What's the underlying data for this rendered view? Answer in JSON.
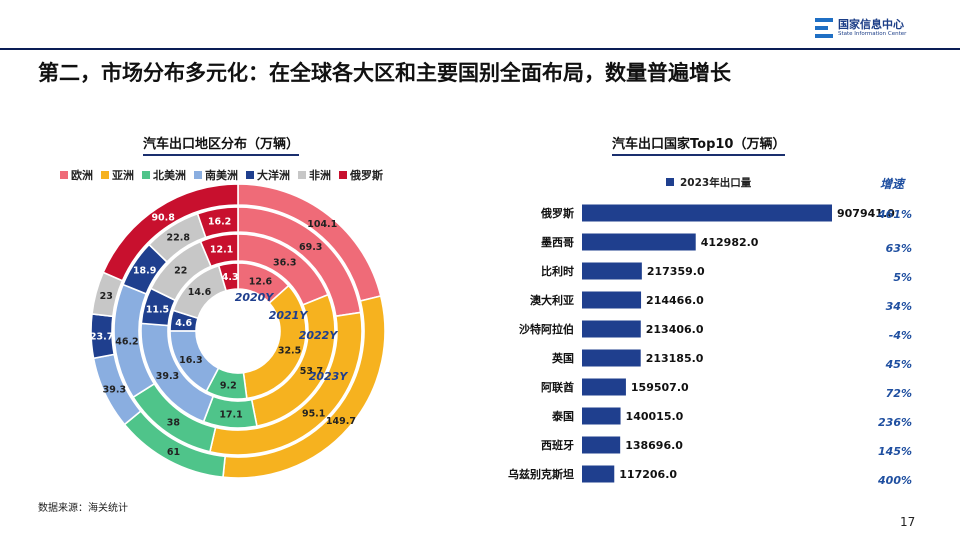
{
  "header": {
    "logo_cn": "国家信息中心",
    "logo_en": "State Information Center",
    "title": "第二，市场分布多元化：在全球各大区和主要国别全面布局，数量普遍增长"
  },
  "colors": {
    "欧洲": "#ef6b78",
    "亚洲": "#f6b21f",
    "北美洲": "#4fc48a",
    "南美洲": "#8aaee0",
    "大洋洲": "#1f3f8e",
    "非洲": "#c7c7c7",
    "俄罗斯": "#c8102e",
    "bar": "#1f3f8e",
    "growth": "#1f4fa0"
  },
  "chart_data": [
    {
      "type": "pie",
      "subtype": "nested-donut",
      "title": "汽车出口地区分布（万辆）",
      "categories": [
        "欧洲",
        "亚洲",
        "北美洲",
        "南美洲",
        "大洋洲",
        "非洲",
        "俄罗斯"
      ],
      "series": [
        {
          "name": "2020Y",
          "values": [
            12.6,
            32.5,
            9.2,
            16.3,
            4.6,
            14.6,
            4.3
          ]
        },
        {
          "name": "2021Y",
          "values": [
            36.3,
            53.7,
            17.1,
            39.3,
            11.5,
            22.0,
            12.1
          ]
        },
        {
          "name": "2022Y",
          "values": [
            69.3,
            95.1,
            38.0,
            46.2,
            18.9,
            22.8,
            16.2
          ]
        },
        {
          "name": "2023Y",
          "values": [
            104.1,
            149.7,
            61.0,
            39.3,
            23.7,
            23.0,
            90.8
          ]
        }
      ],
      "legend": "top"
    },
    {
      "type": "bar",
      "orientation": "horizontal",
      "title": "汽车出口国家Top10（万辆）",
      "categories": [
        "俄罗斯",
        "墨西哥",
        "比利时",
        "澳大利亚",
        "沙特阿拉伯",
        "英国",
        "阿联酋",
        "泰国",
        "西班牙",
        "乌兹别克斯坦"
      ],
      "series": [
        {
          "name": "2023年出口量",
          "values": [
            907941.0,
            412982.0,
            217359.0,
            214466.0,
            213406.0,
            213185.0,
            159507.0,
            140015.0,
            138696.0,
            117206.0
          ]
        }
      ],
      "value_labels": [
        "907941.0",
        "412982.0",
        "217359.0",
        "214466.0",
        "213406.0",
        "213185.0",
        "159507.0",
        "140015.0",
        "138696.0",
        "117206.0"
      ],
      "growth_header": "增速",
      "growth": [
        "461%",
        "63%",
        "5%",
        "34%",
        "-4%",
        "45%",
        "72%",
        "236%",
        "145%",
        "400%"
      ],
      "legend": "top"
    }
  ],
  "footer": {
    "source": "数据来源：海关统计",
    "page": "17"
  }
}
